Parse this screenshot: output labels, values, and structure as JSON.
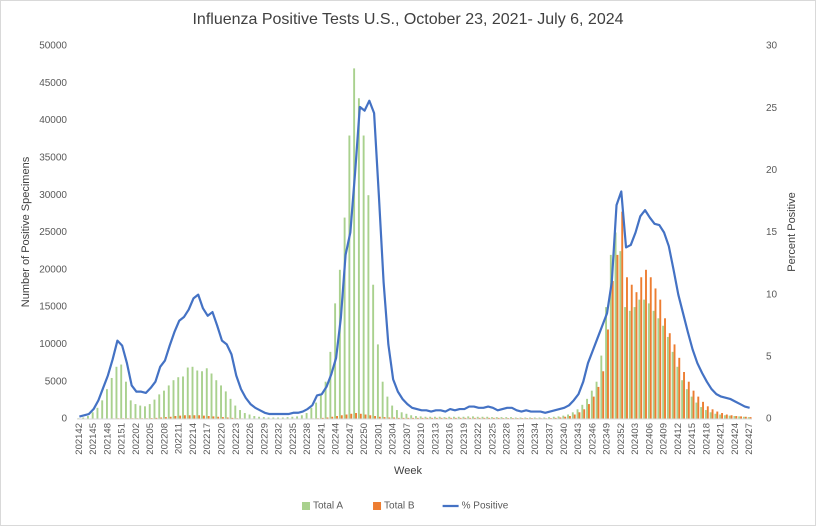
{
  "chart_data": {
    "type": "bar",
    "title": "Influenza Positive Tests U.S., October 23, 2021- July 6, 2024",
    "x_label": "Week",
    "y_label": "Number of Positive Specimens",
    "y2_label": "Percent Positive",
    "categories": [
      "202142",
      null,
      null,
      "202145",
      null,
      null,
      "202148",
      null,
      null,
      "202151",
      null,
      null,
      "202202",
      null,
      null,
      "202205",
      null,
      null,
      "202208",
      null,
      null,
      "202211",
      null,
      null,
      "202214",
      null,
      null,
      "202217",
      null,
      null,
      "202220",
      null,
      null,
      "202223",
      null,
      null,
      "202226",
      null,
      null,
      "202229",
      null,
      null,
      "202232",
      null,
      null,
      "202235",
      null,
      null,
      "202238",
      null,
      null,
      "202241",
      null,
      null,
      "202244",
      null,
      null,
      "202247",
      null,
      null,
      "202250",
      null,
      null,
      "202301",
      null,
      null,
      "202304",
      null,
      null,
      "202307",
      null,
      null,
      "202310",
      null,
      null,
      "202313",
      null,
      null,
      "202316",
      null,
      null,
      "202319",
      null,
      null,
      "202322",
      null,
      null,
      "202325",
      null,
      null,
      "202328",
      null,
      null,
      "202331",
      null,
      null,
      "202334",
      null,
      null,
      "202337",
      null,
      null,
      "202340",
      null,
      null,
      "202343",
      null,
      null,
      "202346",
      null,
      null,
      "202349",
      null,
      null,
      "202352",
      null,
      null,
      "202403",
      null,
      null,
      "202406",
      null,
      null,
      "202409",
      null,
      null,
      "202412",
      null,
      null,
      "202415",
      null,
      null,
      "202418",
      null,
      null,
      "202421",
      null,
      null,
      "202424",
      null,
      null,
      "202427"
    ],
    "series": [
      {
        "name": "Total A",
        "color": "#a9d18e",
        "values": [
          100,
          200,
          400,
          900,
          1500,
          2500,
          4000,
          5500,
          7000,
          7300,
          5000,
          2500,
          2000,
          1800,
          1700,
          2000,
          2600,
          3300,
          3800,
          4500,
          5200,
          5600,
          5700,
          6900,
          7000,
          6500,
          6400,
          6800,
          6100,
          5200,
          4500,
          3700,
          2700,
          1800,
          1200,
          800,
          600,
          400,
          300,
          250,
          200,
          200,
          200,
          200,
          250,
          300,
          350,
          500,
          800,
          1500,
          2200,
          3200,
          5000,
          9000,
          15500,
          20000,
          27000,
          38000,
          47000,
          43000,
          38000,
          30000,
          18000,
          10000,
          5000,
          3000,
          1800,
          1200,
          900,
          700,
          500,
          400,
          350,
          300,
          300,
          300,
          300,
          250,
          300,
          300,
          300,
          300,
          350,
          350,
          300,
          300,
          300,
          250,
          250,
          250,
          250,
          250,
          200,
          200,
          200,
          200,
          200,
          200,
          200,
          250,
          300,
          350,
          450,
          600,
          900,
          1300,
          1900,
          2700,
          3800,
          5000,
          8500,
          15000,
          22000,
          25000,
          22500,
          15000,
          14500,
          15000,
          16000,
          16000,
          15500,
          14500,
          13500,
          12500,
          11000,
          9000,
          7000,
          5200,
          4000,
          3000,
          2200,
          1600,
          1200,
          900,
          700,
          600,
          500,
          450,
          400,
          350,
          300,
          250
        ]
      },
      {
        "name": "Total B",
        "color": "#ed7d31",
        "values": [
          20,
          20,
          30,
          30,
          40,
          50,
          60,
          80,
          100,
          100,
          100,
          100,
          100,
          100,
          100,
          120,
          150,
          200,
          250,
          300,
          400,
          450,
          500,
          500,
          500,
          500,
          450,
          400,
          350,
          300,
          250,
          200,
          150,
          100,
          80,
          60,
          50,
          40,
          30,
          30,
          30,
          30,
          30,
          30,
          30,
          30,
          40,
          50,
          60,
          80,
          100,
          150,
          200,
          300,
          400,
          500,
          600,
          700,
          800,
          700,
          600,
          500,
          400,
          300,
          250,
          200,
          200,
          150,
          150,
          150,
          150,
          150,
          150,
          150,
          150,
          150,
          150,
          150,
          150,
          150,
          150,
          150,
          150,
          150,
          150,
          150,
          150,
          150,
          150,
          120,
          120,
          120,
          120,
          120,
          120,
          120,
          100,
          100,
          100,
          120,
          150,
          200,
          300,
          400,
          600,
          900,
          1300,
          2000,
          3000,
          4300,
          6400,
          12000,
          18500,
          22000,
          27800,
          19000,
          18000,
          17000,
          19000,
          20000,
          19000,
          17500,
          16000,
          13500,
          11500,
          10000,
          8200,
          6300,
          5000,
          3800,
          3000,
          2300,
          1700,
          1300,
          1000,
          800,
          600,
          500,
          400,
          350,
          300,
          250
        ]
      },
      {
        "name": "% Positive",
        "color": "#4472c4",
        "type": "line",
        "axis": "y2",
        "values": [
          0.2,
          0.3,
          0.4,
          0.8,
          1.5,
          2.5,
          3.5,
          4.8,
          6.3,
          5.9,
          4.5,
          2.7,
          2.2,
          2.2,
          2.1,
          2.5,
          3.0,
          4.2,
          4.7,
          5.9,
          7.0,
          7.9,
          8.2,
          8.8,
          9.7,
          10.0,
          8.9,
          8.3,
          8.6,
          7.5,
          6.3,
          6.0,
          5.2,
          3.5,
          2.4,
          1.7,
          1.2,
          0.9,
          0.7,
          0.5,
          0.4,
          0.4,
          0.4,
          0.4,
          0.4,
          0.5,
          0.5,
          0.6,
          0.8,
          1.1,
          1.9,
          2.0,
          2.6,
          3.6,
          4.9,
          8.1,
          13.2,
          15.0,
          19.8,
          25.1,
          24.8,
          25.6,
          24.6,
          18.0,
          11.0,
          6.0,
          3.2,
          2.2,
          1.6,
          1.2,
          0.9,
          0.8,
          0.7,
          0.7,
          0.6,
          0.7,
          0.7,
          0.6,
          0.8,
          0.7,
          0.8,
          0.8,
          1.0,
          1.0,
          0.9,
          0.9,
          1.0,
          0.9,
          0.7,
          0.8,
          0.9,
          0.9,
          0.7,
          0.6,
          0.7,
          0.6,
          0.6,
          0.6,
          0.5,
          0.6,
          0.7,
          0.8,
          0.9,
          1.1,
          1.5,
          2.0,
          3.0,
          4.5,
          5.5,
          6.5,
          7.5,
          8.5,
          11.0,
          17.2,
          18.3,
          13.8,
          14.0,
          15.0,
          16.3,
          16.8,
          16.2,
          15.7,
          15.6,
          15.0,
          13.9,
          12.0,
          10.0,
          8.5,
          7.0,
          5.6,
          4.5,
          3.7,
          3.0,
          2.4,
          2.0,
          1.8,
          1.7,
          1.6,
          1.4,
          1.2,
          1.0,
          0.9
        ]
      }
    ],
    "ylim": [
      0,
      50000
    ],
    "yticks": [
      0,
      {
        "value": 5000,
        "label": "5000"
      },
      {
        "value": 10000,
        "label": "10000"
      },
      {
        "value": 15000,
        "label": "15000"
      },
      {
        "value": 20000,
        "label": "20000"
      },
      {
        "value": 25000,
        "label": "25000"
      },
      {
        "value": 30000,
        "label": "30000"
      },
      {
        "value": 35000,
        "label": "35000"
      },
      {
        "value": 40000,
        "label": "40000"
      },
      {
        "value": 45000,
        "label": "45000"
      },
      {
        "value": 50000,
        "label": "50000"
      }
    ],
    "y2lim": [
      0,
      30
    ],
    "y2ticks": [
      0,
      5,
      10,
      15,
      20,
      25,
      30
    ],
    "grid": false,
    "legend": "bottom"
  }
}
